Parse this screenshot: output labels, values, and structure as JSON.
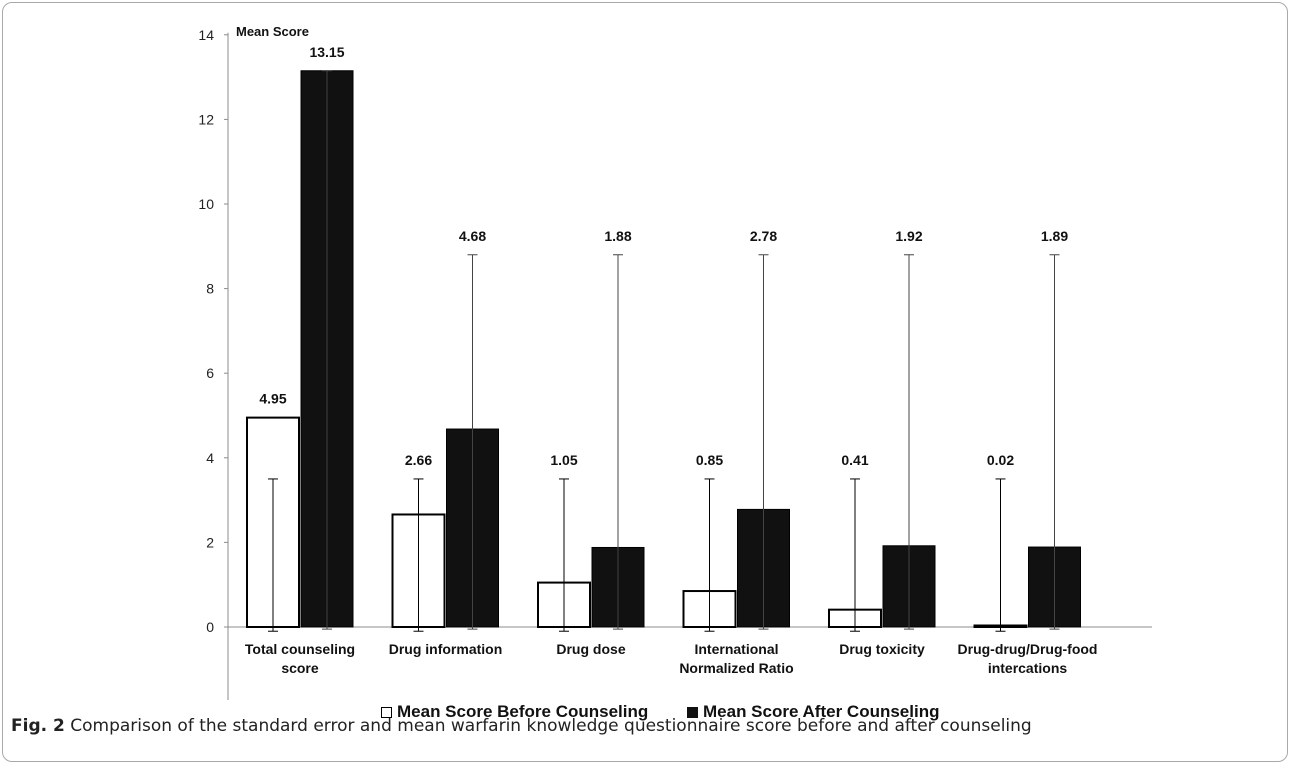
{
  "chart_data": {
    "type": "bar",
    "ylabel": "Mean Score",
    "ylim": [
      -2,
      14
    ],
    "yticks": [
      -2,
      0,
      2,
      4,
      6,
      8,
      10,
      12,
      14
    ],
    "grid": false,
    "legend_position": "bottom",
    "categories": [
      [
        "Total counseling",
        "score"
      ],
      [
        "Drug information"
      ],
      [
        "Drug dose"
      ],
      [
        "International",
        "Normalized Ratio"
      ],
      [
        "Drug toxicity"
      ],
      [
        "Drug-drug/Drug-food",
        "intercations"
      ]
    ],
    "series": [
      {
        "name": "Mean Score Before Counseling",
        "fill": "#ffffff",
        "stroke": "#000000",
        "values": [
          4.95,
          2.66,
          1.05,
          0.85,
          0.41,
          0.02
        ],
        "value_labels": [
          "4.95",
          "2.66",
          "1.05",
          "0.85",
          "0.41",
          "0.02"
        ],
        "error_upper": [
          3.5,
          3.5,
          3.5,
          3.5,
          3.5,
          3.5
        ],
        "error_lower": [
          -0.1,
          -0.1,
          -0.1,
          -0.1,
          -0.1,
          -0.1
        ]
      },
      {
        "name": "Mean Score After Counseling",
        "fill": "#111111",
        "stroke": "#000000",
        "values": [
          13.15,
          4.68,
          1.88,
          2.78,
          1.92,
          1.89
        ],
        "value_labels": [
          "13.15",
          "4.68",
          "1.88",
          "2.78",
          "1.92",
          "1.89"
        ],
        "error_upper": [
          13.15,
          8.8,
          8.8,
          8.8,
          8.8,
          8.8
        ],
        "error_lower": [
          -0.05,
          -0.05,
          -0.05,
          -0.05,
          -0.05,
          -0.05
        ]
      }
    ]
  },
  "caption": {
    "label": "Fig. 2",
    "text": " Comparison of the standard error and mean warfarin knowledge questionnaire score before and after counseling"
  }
}
